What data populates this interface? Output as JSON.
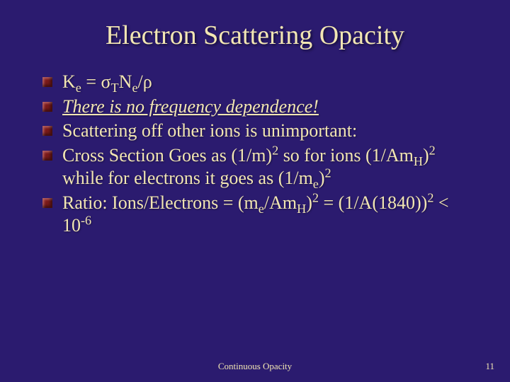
{
  "slide": {
    "background_color": "#2b1b6f",
    "text_color": "#f2e6b3",
    "title_color": "#f2e6b3",
    "bullet_color": "#7a1a1a",
    "title": "Electron Scattering Opacity",
    "title_fontsize": 38,
    "content_fontsize": 26,
    "footer_fontsize": 13,
    "bullets": [
      {
        "html": "Κ<sub>e</sub> = σ<sub>T</sub>N<sub>e</sub>/ρ"
      },
      {
        "html": "<span class=\"emph\">There is no frequency dependence!</span>"
      },
      {
        "html": "Scattering off other ions is unimportant:"
      },
      {
        "html": "Cross Section Goes as (1/m)<sup>2</sup> so for ions (1/Am<sub>H</sub>)<sup>2</sup> while for electrons it goes as (1/m<sub>e</sub>)<sup>2</sup>"
      },
      {
        "html": "Ratio: Ions/Electrons = (m<sub>e</sub>/Am<sub>H</sub>)<sup>2</sup> = (1/A(1840))<sup>2</sup> &lt; 10<sup>-6</sup>"
      }
    ],
    "footer_center": "Continuous Opacity",
    "page_number": "11"
  }
}
